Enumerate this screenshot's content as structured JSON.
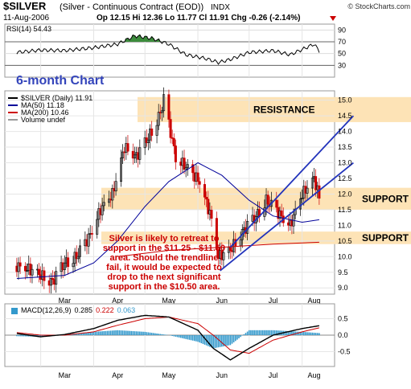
{
  "header": {
    "symbol": "$SILVER",
    "name": "(Silver - Continuous Contract (EOD))",
    "exchange": "INDX",
    "date": "11-Aug-2006",
    "quote": "Op 12.15  Hi 12.36  Lo 11.77  Cl 11.91  Chg -0.26 (-2.14%)",
    "copyright": "© StockCharts.com"
  },
  "colors": {
    "price_up": "#000000",
    "price_down": "#cc0000",
    "ma50": "#000099",
    "ma200": "#cc0000",
    "band": "#fde3b6",
    "annotation": "#cc0000",
    "trendline": "#2233bb",
    "macd_hist": "#3399cc",
    "rsi_fill": "#3c8c3c"
  },
  "chart_data": [
    {
      "type": "line",
      "panel": "rsi",
      "label": "RSI(14) 54.43",
      "ylim": [
        10,
        100
      ],
      "yticks": [
        90,
        70,
        50,
        30
      ],
      "reference_lines": [
        70,
        30
      ],
      "x": [
        "2006-02-15",
        "2006-03-01",
        "2006-03-15",
        "2006-04-01",
        "2006-04-15",
        "2006-04-25",
        "2006-05-05",
        "2006-05-15",
        "2006-05-25",
        "2006-06-05",
        "2006-06-13",
        "2006-06-20",
        "2006-07-01",
        "2006-07-15",
        "2006-07-25",
        "2006-08-01",
        "2006-08-08",
        "2006-08-11"
      ],
      "values": [
        52,
        56,
        55,
        60,
        66,
        80,
        76,
        66,
        48,
        42,
        35,
        40,
        52,
        55,
        48,
        57,
        66,
        54.43
      ]
    },
    {
      "type": "candlestick",
      "panel": "price",
      "title": "6-month Chart",
      "legend": [
        "$SILVER (Daily) 11.91",
        "MA(50) 11.18",
        "MA(200) 10.46",
        "Volume undef"
      ],
      "x_ticks": [
        "Mar",
        "Apr",
        "May",
        "Jun",
        "Jul",
        "Aug"
      ],
      "ylim": [
        8.8,
        15.3
      ],
      "yticks": [
        9.0,
        9.5,
        10.0,
        10.5,
        11.0,
        11.5,
        12.0,
        12.5,
        13.0,
        13.5,
        14.0,
        14.5,
        15.0
      ],
      "x": [
        "2006-02-15",
        "2006-02-22",
        "2006-03-01",
        "2006-03-08",
        "2006-03-15",
        "2006-03-22",
        "2006-03-29",
        "2006-04-05",
        "2006-04-12",
        "2006-04-19",
        "2006-04-26",
        "2006-05-03",
        "2006-05-10",
        "2006-05-12",
        "2006-05-19",
        "2006-05-26",
        "2006-06-02",
        "2006-06-09",
        "2006-06-13",
        "2006-06-20",
        "2006-06-27",
        "2006-07-04",
        "2006-07-11",
        "2006-07-18",
        "2006-07-25",
        "2006-08-01",
        "2006-08-08",
        "2006-08-11"
      ],
      "close": [
        9.7,
        9.6,
        9.4,
        9.2,
        9.8,
        10.0,
        10.6,
        11.5,
        12.0,
        13.5,
        13.2,
        13.8,
        14.6,
        15.0,
        13.2,
        12.8,
        12.4,
        11.2,
        10.0,
        10.2,
        10.8,
        11.2,
        11.8,
        11.4,
        11.0,
        12.0,
        12.5,
        11.91
      ],
      "ma50_x": [
        "2006-02-15",
        "2006-03-15",
        "2006-04-01",
        "2006-04-15",
        "2006-05-01",
        "2006-05-15",
        "2006-06-01",
        "2006-06-15",
        "2006-07-01",
        "2006-07-15",
        "2006-08-01",
        "2006-08-11"
      ],
      "ma50": [
        9.3,
        9.4,
        9.8,
        10.5,
        11.6,
        12.4,
        13.0,
        12.6,
        11.8,
        11.3,
        11.1,
        11.18
      ],
      "ma200_x": [
        "2006-04-15",
        "2006-05-15",
        "2006-06-15",
        "2006-07-15",
        "2006-08-11"
      ],
      "ma200": [
        10.0,
        10.2,
        10.3,
        10.4,
        10.46
      ],
      "annotations": [
        {
          "label": "RESISTANCE",
          "kind": "band",
          "ylim": [
            14.3,
            15.1
          ]
        },
        {
          "label": "SUPPORT",
          "kind": "band",
          "ylim": [
            11.5,
            12.2
          ]
        },
        {
          "label": "SUPPORT",
          "kind": "band",
          "ylim": [
            10.4,
            10.8
          ]
        }
      ],
      "note": "Silver is likely to retreat to support in the $11.25 - $11.50 area. Should the trendline fail, it would be expected to drop to the next significant support in the $10.50 area.",
      "trend_channel": {
        "lower": [
          [
            "2006-06-14",
            9.55
          ],
          [
            "2006-08-31",
            13.0
          ]
        ],
        "upper": [
          [
            "2006-06-20",
            10.3
          ],
          [
            "2006-08-31",
            14.5
          ]
        ]
      }
    },
    {
      "type": "line",
      "panel": "macd",
      "label_prefix": "MACD(12,26,9)",
      "label_macd": "0.285",
      "label_signal": "0.222",
      "label_hist": "0.063",
      "x_ticks": [
        "Mar",
        "Apr",
        "May",
        "Jun",
        "Jul",
        "Aug"
      ],
      "ylim": [
        -0.95,
        0.95
      ],
      "yticks": [
        0.5,
        0.0,
        -0.5
      ],
      "x": [
        "2006-02-15",
        "2006-03-01",
        "2006-03-15",
        "2006-04-01",
        "2006-04-15",
        "2006-05-01",
        "2006-05-15",
        "2006-06-01",
        "2006-06-10",
        "2006-06-20",
        "2006-07-01",
        "2006-07-15",
        "2006-08-01",
        "2006-08-11"
      ],
      "macd": [
        0.05,
        -0.05,
        0.02,
        0.2,
        0.45,
        0.6,
        0.55,
        0.15,
        -0.4,
        -0.75,
        -0.4,
        0.0,
        0.2,
        0.285
      ],
      "signal": [
        0.08,
        0.0,
        0.0,
        0.1,
        0.3,
        0.5,
        0.55,
        0.35,
        0.0,
        -0.45,
        -0.55,
        -0.15,
        0.1,
        0.222
      ],
      "histogram": [
        -0.03,
        -0.05,
        0.02,
        0.1,
        0.15,
        0.1,
        0.0,
        -0.2,
        -0.4,
        -0.3,
        0.15,
        0.15,
        0.1,
        0.063
      ]
    }
  ]
}
